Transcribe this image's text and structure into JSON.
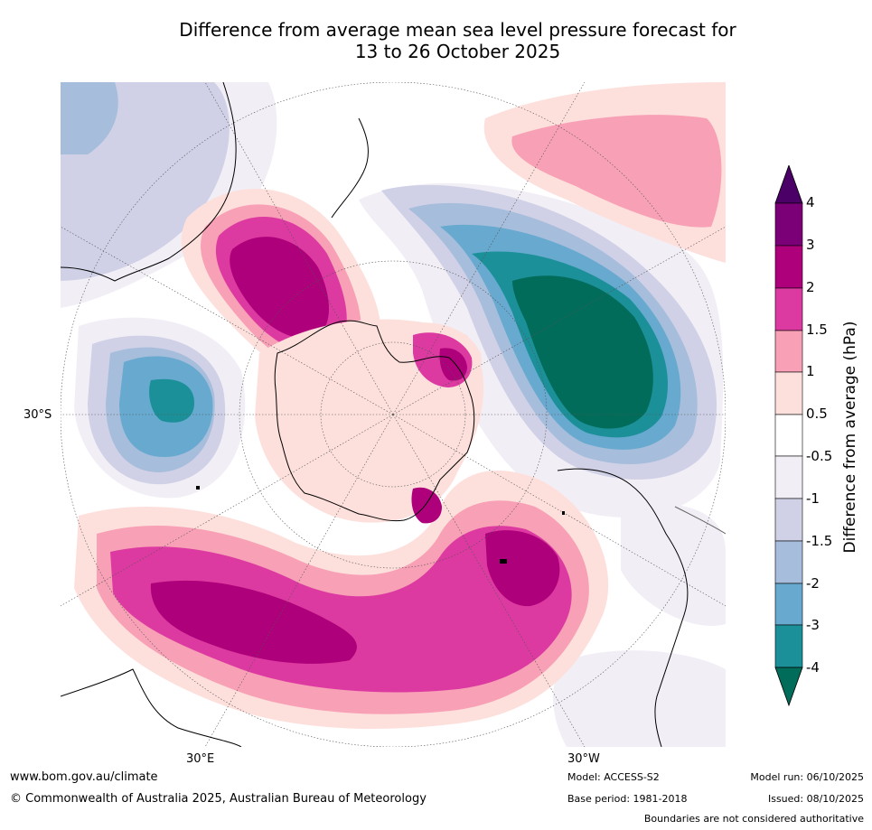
{
  "title_line1": "Difference from average mean sea level pressure forecast for",
  "title_line2": "13 to 26 October 2025",
  "map": {
    "lat_label": "30°S",
    "lon_labels": [
      "30°E",
      "30°W"
    ]
  },
  "colorbar": {
    "title": "Difference from average (hPa)",
    "ticks": [
      "4",
      "3",
      "2",
      "1.5",
      "1",
      "0.5",
      "-0.5",
      "-1",
      "-1.5",
      "-2",
      "-3",
      "-4"
    ],
    "colors": {
      "gt4": "#4a0066",
      "3_4": "#7b0078",
      "2_3": "#ae007a",
      "1.5_2": "#dc3aa0",
      "1_1.5": "#f8a0b6",
      "0.5_1": "#fde0dc",
      "neutral": "#ffffff",
      "m1_m0.5": "#f2eef6",
      "m1.5_m1": "#d0d1e6",
      "m2_m1.5": "#a6bddb",
      "m3_m2": "#67a9cf",
      "m4_m3": "#1c9099",
      "lt_m4": "#016c59"
    }
  },
  "footer": {
    "website": "www.bom.gov.au/climate",
    "copyright": "© Commonwealth of Australia 2025, Australian Bureau of Meteorology",
    "model": "Model: ACCESS-S2",
    "base_period": "Base period: 1981-2018",
    "model_run": "Model run: 06/10/2025",
    "issued": "Issued: 08/10/2025",
    "disclaimer": "Boundaries are not considered authoritative"
  }
}
